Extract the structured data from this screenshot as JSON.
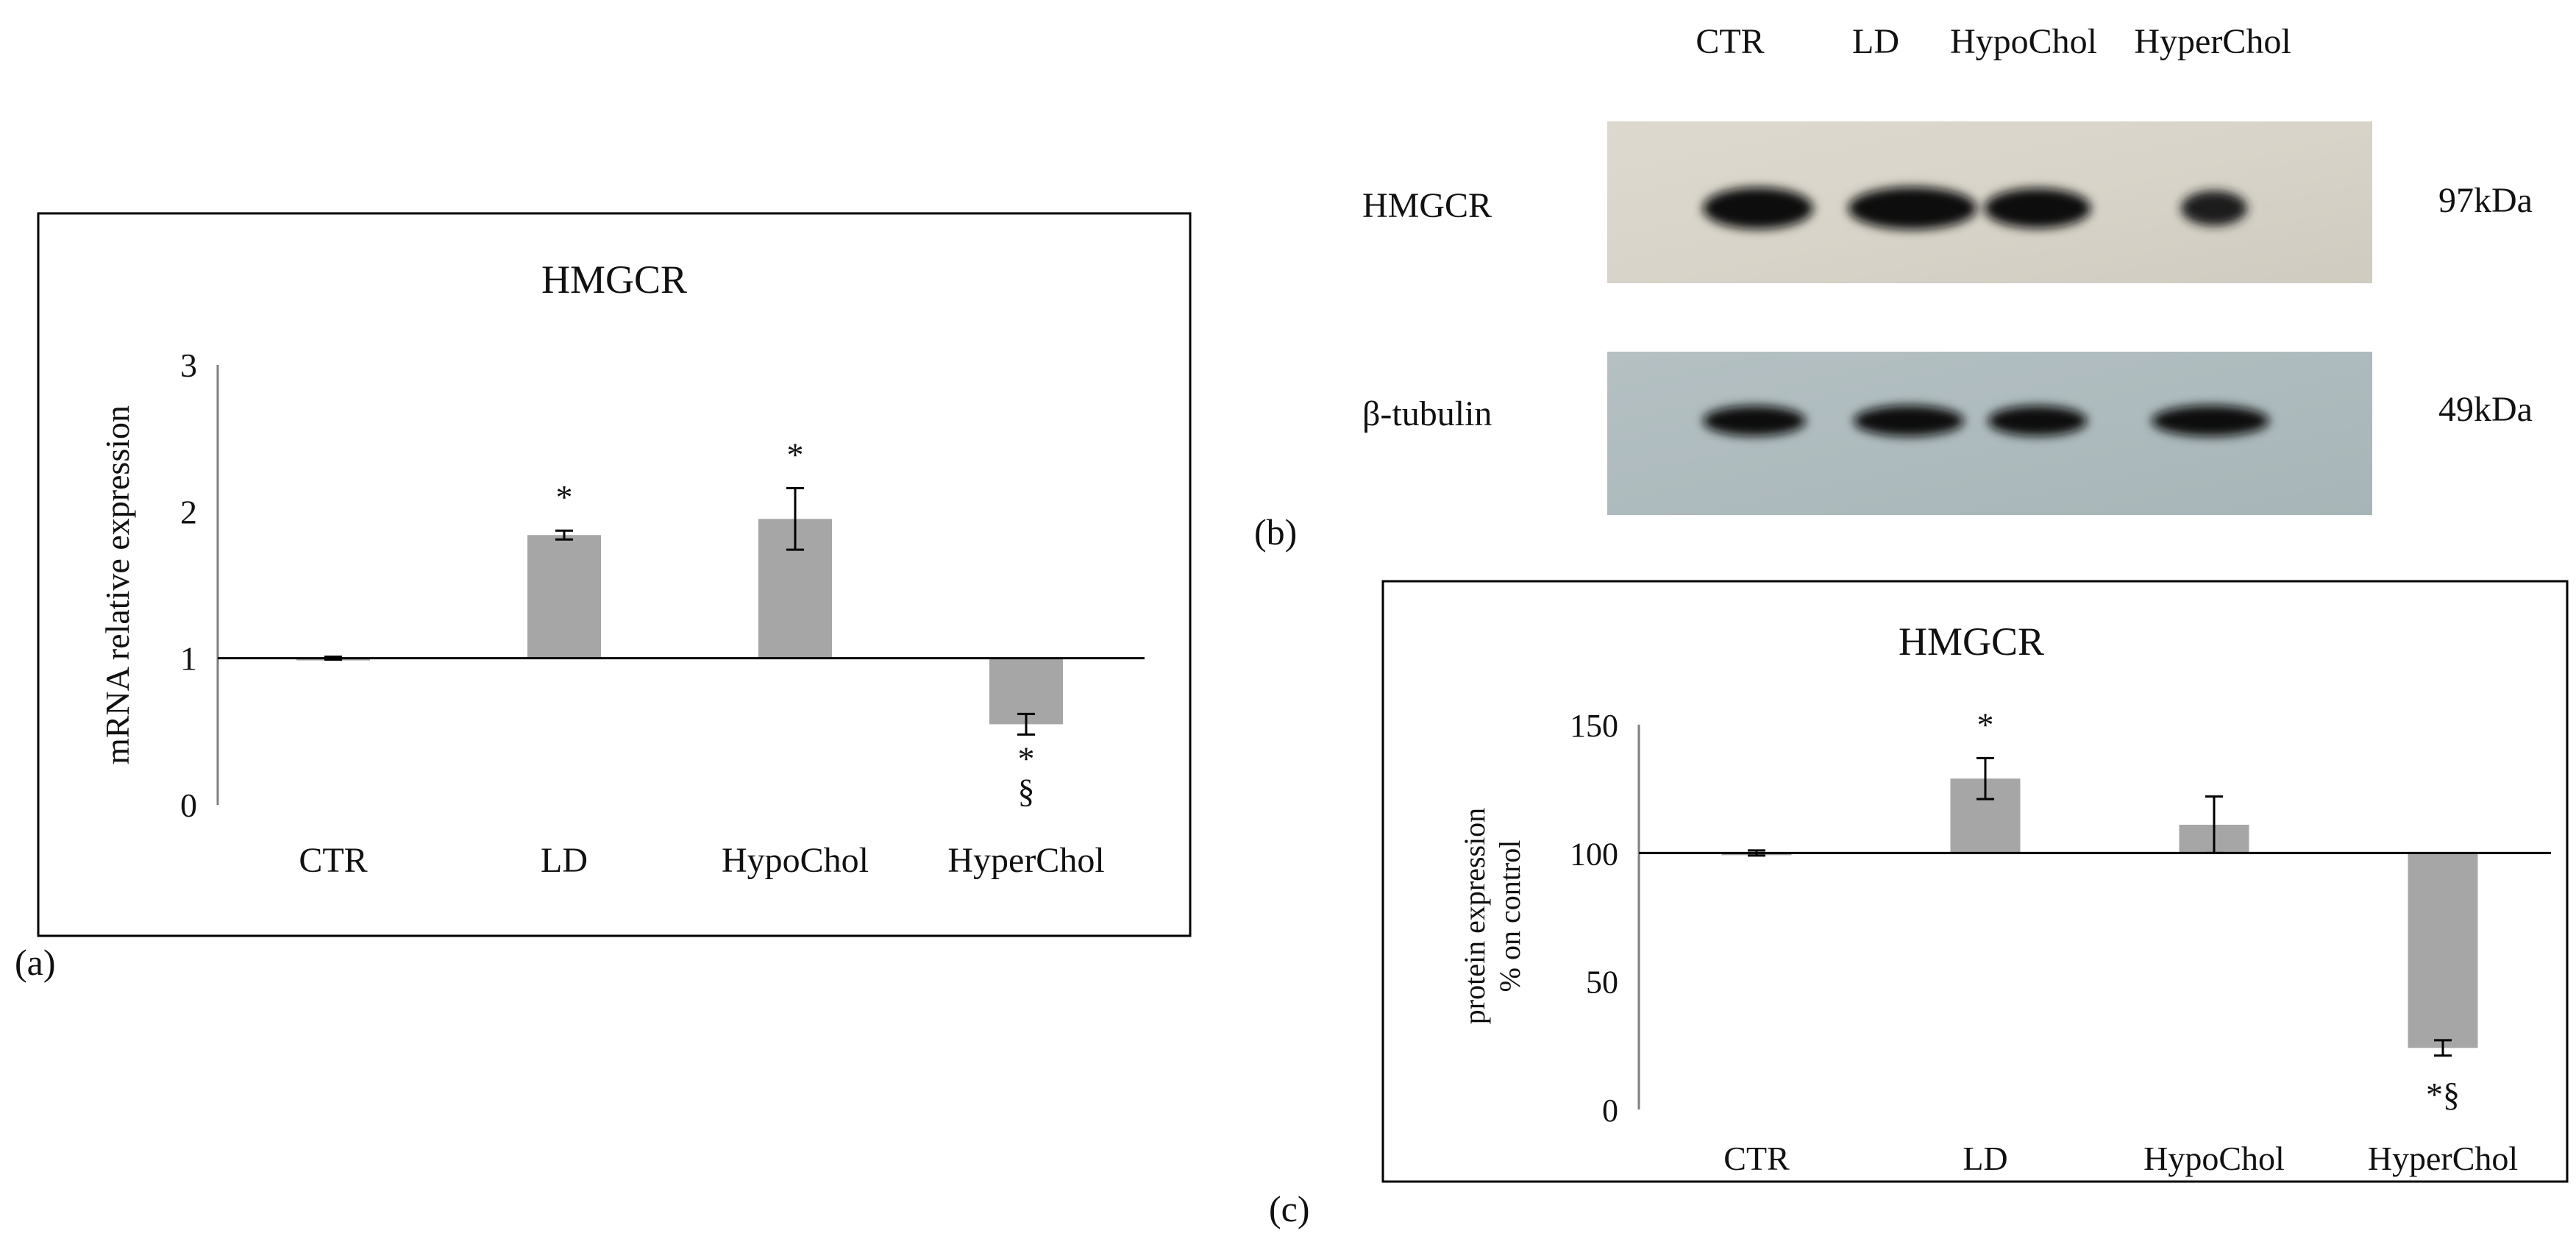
{
  "panels": {
    "a": "(a)",
    "b": "(b)",
    "c": "(c)"
  },
  "blot": {
    "lanes": [
      "CTR",
      "LD",
      "HypoChol",
      "HyperChol"
    ],
    "bands": [
      {
        "protein": "HMGCR",
        "size": "97kDa",
        "intensity": [
          0.95,
          1.0,
          0.85,
          0.55
        ]
      },
      {
        "protein": "β-tubulin",
        "size": "49kDa",
        "intensity": [
          0.85,
          0.9,
          0.85,
          0.9
        ]
      }
    ]
  },
  "chart_data": [
    {
      "type": "bar",
      "title": "HMGCR",
      "categories": [
        "CTR",
        "LD",
        "HypoChol",
        "HyperChol"
      ],
      "values": [
        1.0,
        1.84,
        1.95,
        0.55
      ],
      "errors": [
        0.01,
        0.03,
        0.21,
        0.07
      ],
      "baseline": 1,
      "ylabel": "mRNA relative expression",
      "ylim": [
        0,
        3
      ],
      "yticks": [
        "0",
        "1",
        "2",
        "3"
      ],
      "annotations": [
        "",
        "*",
        "*",
        "*§"
      ],
      "annotation_side": [
        "",
        "above",
        "above",
        "below"
      ],
      "bar_color": "#a6a6a6",
      "grid": false
    },
    {
      "type": "bar",
      "title": "HMGCR",
      "categories": [
        "CTR",
        "LD",
        "HypoChol",
        "HyperChol"
      ],
      "values": [
        100,
        129,
        111,
        24
      ],
      "errors": [
        1,
        8,
        11,
        3
      ],
      "baseline": 100,
      "ylabel": [
        "protein expression",
        "% on control"
      ],
      "ylim": [
        0,
        150
      ],
      "yticks": [
        "0",
        "50",
        "100",
        "150"
      ],
      "annotations": [
        "",
        "*",
        "",
        "*§"
      ],
      "annotation_side": [
        "",
        "above",
        "",
        "below"
      ],
      "bar_color": "#a6a6a6",
      "grid": false
    }
  ]
}
